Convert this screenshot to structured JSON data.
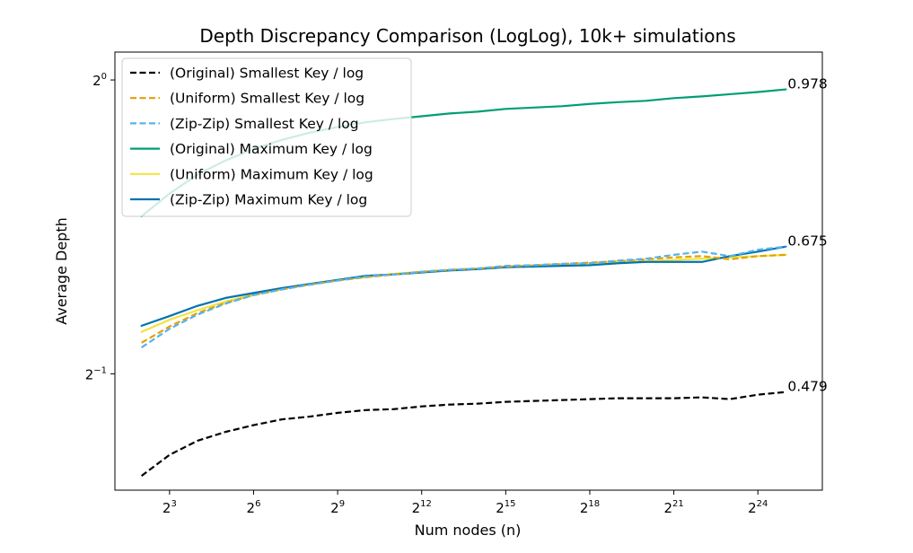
{
  "chart_data": {
    "type": "line",
    "title": "Depth Discrepancy Comparison (LogLog), 10k+ simulations",
    "xlabel": "Num nodes (n)",
    "ylabel": "Average Depth",
    "xscale": "log2",
    "yscale": "log2",
    "x_exponents": [
      2,
      3,
      4,
      5,
      6,
      7,
      8,
      9,
      10,
      11,
      12,
      13,
      14,
      15,
      16,
      17,
      18,
      19,
      20,
      21,
      22,
      23,
      24,
      25
    ],
    "xlim_exp": [
      1.05,
      26.3
    ],
    "ylim": [
      0.38,
      1.068
    ],
    "x_ticks": [
      {
        "base": "2",
        "exp": "3",
        "value_exp": 3
      },
      {
        "base": "2",
        "exp": "6",
        "value_exp": 6
      },
      {
        "base": "2",
        "exp": "9",
        "value_exp": 9
      },
      {
        "base": "2",
        "exp": "12",
        "value_exp": 12
      },
      {
        "base": "2",
        "exp": "15",
        "value_exp": 15
      },
      {
        "base": "2",
        "exp": "18",
        "value_exp": 18
      },
      {
        "base": "2",
        "exp": "21",
        "value_exp": 21
      },
      {
        "base": "2",
        "exp": "24",
        "value_exp": 24
      }
    ],
    "y_ticks": [
      {
        "base": "2",
        "exp": "0",
        "value": 1.0
      },
      {
        "base": "2",
        "exp": "−1",
        "value": 0.5
      }
    ],
    "legend_position": "top-left",
    "series": [
      {
        "name": "(Original) Smallest Key / log",
        "color": "#000000",
        "dash": true,
        "values": [
          0.393,
          0.413,
          0.427,
          0.436,
          0.443,
          0.449,
          0.452,
          0.456,
          0.459,
          0.46,
          0.463,
          0.465,
          0.466,
          0.468,
          0.469,
          0.47,
          0.471,
          0.472,
          0.472,
          0.472,
          0.473,
          0.471,
          0.476,
          0.479
        ]
      },
      {
        "name": "(Uniform) Smallest Key / log",
        "color": "#e69f00",
        "dash": true,
        "values": [
          0.538,
          0.559,
          0.577,
          0.591,
          0.602,
          0.61,
          0.617,
          0.623,
          0.628,
          0.632,
          0.636,
          0.639,
          0.641,
          0.644,
          0.646,
          0.648,
          0.65,
          0.652,
          0.655,
          0.658,
          0.66,
          0.655,
          0.66,
          0.662
        ]
      },
      {
        "name": "(Zip-Zip) Smallest Key / log",
        "color": "#56b4e9",
        "dash": true,
        "values": [
          0.532,
          0.556,
          0.575,
          0.59,
          0.602,
          0.61,
          0.617,
          0.623,
          0.629,
          0.632,
          0.636,
          0.639,
          0.641,
          0.645,
          0.646,
          0.648,
          0.649,
          0.653,
          0.656,
          0.662,
          0.667,
          0.66,
          0.67,
          0.675
        ]
      },
      {
        "name": "(Original) Maximum Key / log",
        "color": "#009e73",
        "dash": false,
        "values": [
          0.725,
          0.765,
          0.8,
          0.827,
          0.85,
          0.868,
          0.883,
          0.895,
          0.905,
          0.912,
          0.918,
          0.924,
          0.928,
          0.934,
          0.937,
          0.94,
          0.945,
          0.949,
          0.952,
          0.958,
          0.962,
          0.967,
          0.972,
          0.978
        ]
      },
      {
        "name": "(Uniform) Maximum Key / log",
        "color": "#f0e442",
        "dash": false,
        "values": [
          0.552,
          0.568,
          0.581,
          0.593,
          0.603,
          0.611,
          0.618,
          0.624,
          0.628,
          0.633,
          0.636,
          0.639,
          0.641,
          0.644,
          0.645,
          0.647,
          0.649,
          0.651,
          0.652,
          0.654,
          0.656,
          0.658,
          0.66,
          0.662
        ]
      },
      {
        "name": "(Zip-Zip) Maximum Key / log",
        "color": "#0072b2",
        "dash": false,
        "values": [
          0.56,
          0.573,
          0.587,
          0.598,
          0.605,
          0.612,
          0.618,
          0.624,
          0.63,
          0.632,
          0.635,
          0.638,
          0.64,
          0.643,
          0.644,
          0.645,
          0.646,
          0.649,
          0.651,
          0.651,
          0.651,
          0.66,
          0.667,
          0.675
        ]
      }
    ],
    "end_labels": [
      {
        "text": "0.978",
        "series": 3
      },
      {
        "text": "0.675",
        "series": 5
      },
      {
        "text": "0.479",
        "series": 0
      }
    ]
  }
}
